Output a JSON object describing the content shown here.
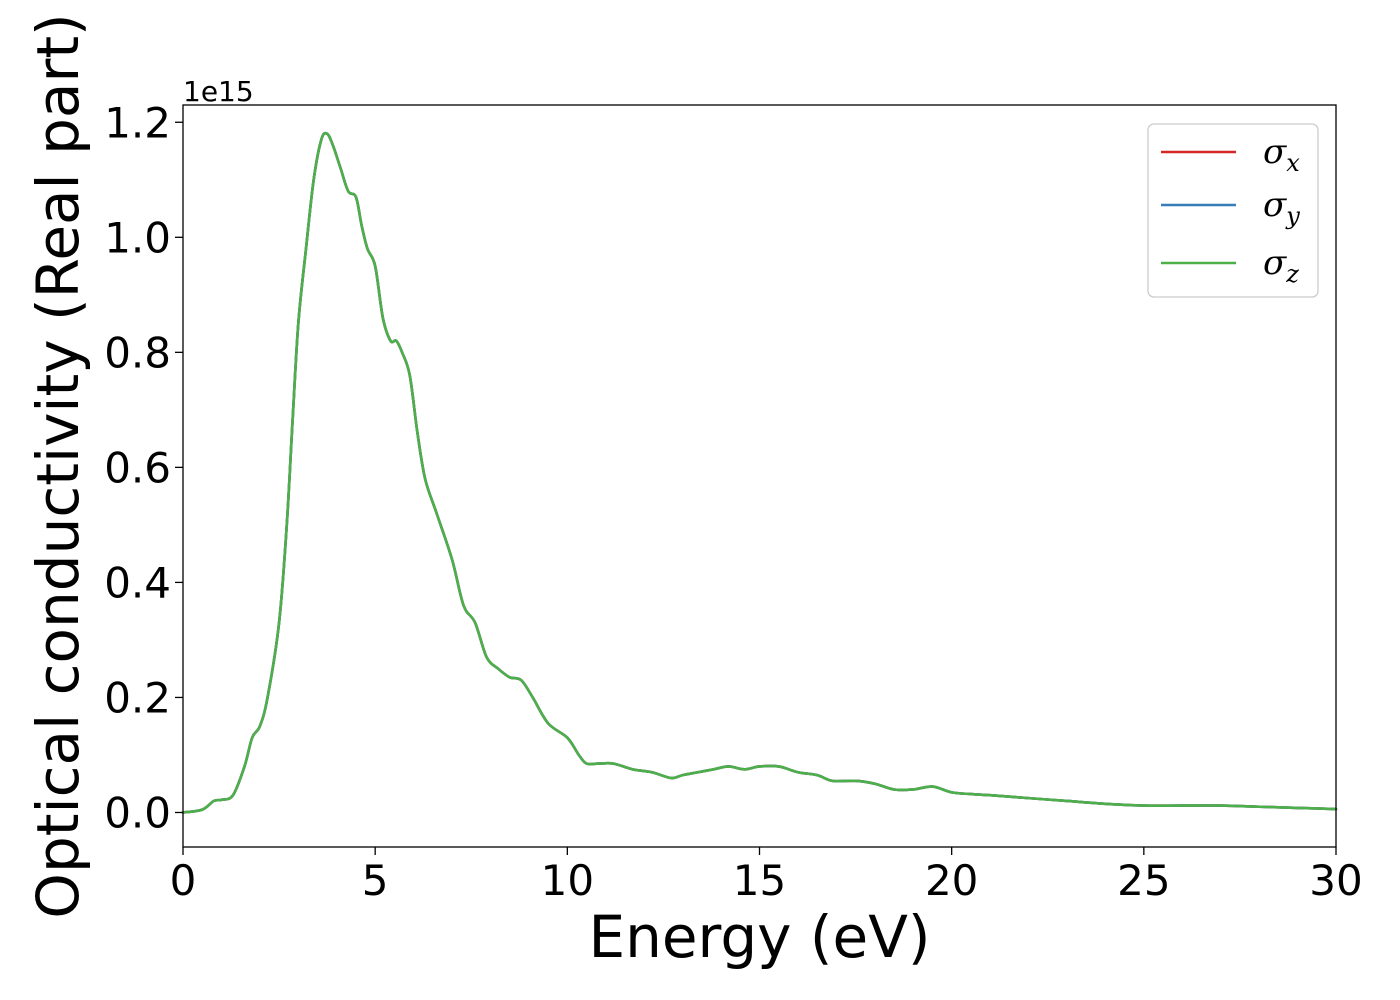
{
  "chart_data": {
    "type": "line",
    "xlabel": "Energy (eV)",
    "ylabel": "Optical conductivity (Real part)",
    "y_offset_label": "1e15",
    "xlim": [
      0,
      30
    ],
    "ylim": [
      -0.06,
      1.23
    ],
    "x_ticks": [
      0,
      5,
      10,
      15,
      20,
      25,
      30
    ],
    "x_tick_labels": [
      "0",
      "5",
      "10",
      "15",
      "20",
      "25",
      "30"
    ],
    "y_ticks": [
      0.0,
      0.2,
      0.4,
      0.6,
      0.8,
      1.0,
      1.2
    ],
    "y_tick_labels": [
      "0.0",
      "0.2",
      "0.4",
      "0.6",
      "0.8",
      "1.0",
      "1.2"
    ],
    "grid": false,
    "legend_position": "top-right",
    "series": [
      {
        "name": "σx",
        "symbol": "σ",
        "subscript": "x",
        "color": "#d62728"
      },
      {
        "name": "σy",
        "symbol": "σ",
        "subscript": "y",
        "color": "#377eb8"
      },
      {
        "name": "σz",
        "symbol": "σ",
        "subscript": "z",
        "color": "#4daf4a"
      }
    ],
    "x": [
      0,
      0.5,
      0.8,
      1.0,
      1.3,
      1.6,
      1.8,
      2.0,
      2.2,
      2.5,
      2.7,
      2.85,
      3.0,
      3.2,
      3.4,
      3.6,
      3.75,
      3.9,
      4.1,
      4.3,
      4.5,
      4.65,
      4.8,
      5.0,
      5.2,
      5.4,
      5.55,
      5.7,
      5.9,
      6.1,
      6.3,
      6.6,
      7.0,
      7.3,
      7.6,
      7.9,
      8.2,
      8.5,
      8.8,
      9.1,
      9.5,
      10.0,
      10.3,
      10.5,
      10.8,
      11.2,
      11.7,
      12.2,
      12.7,
      13.0,
      13.4,
      13.8,
      14.2,
      14.6,
      15.0,
      15.5,
      16.0,
      16.5,
      16.9,
      17.5,
      18.0,
      18.5,
      19.0,
      19.5,
      20.0,
      20.5,
      21.0,
      22.0,
      23.0,
      24.0,
      25.0,
      26.0,
      27.0,
      28.0,
      29.0,
      30.0
    ],
    "values": [
      0.0,
      0.005,
      0.02,
      0.022,
      0.03,
      0.08,
      0.13,
      0.15,
      0.2,
      0.33,
      0.5,
      0.68,
      0.85,
      0.98,
      1.1,
      1.17,
      1.18,
      1.16,
      1.12,
      1.08,
      1.07,
      1.02,
      0.98,
      0.95,
      0.86,
      0.82,
      0.82,
      0.8,
      0.76,
      0.66,
      0.58,
      0.52,
      0.44,
      0.36,
      0.33,
      0.27,
      0.25,
      0.235,
      0.23,
      0.2,
      0.155,
      0.13,
      0.1,
      0.085,
      0.085,
      0.085,
      0.075,
      0.07,
      0.06,
      0.065,
      0.07,
      0.075,
      0.08,
      0.075,
      0.08,
      0.08,
      0.07,
      0.065,
      0.055,
      0.055,
      0.05,
      0.04,
      0.04,
      0.045,
      0.035,
      0.032,
      0.03,
      0.025,
      0.02,
      0.015,
      0.012,
      0.012,
      0.012,
      0.01,
      0.008,
      0.006
    ]
  }
}
